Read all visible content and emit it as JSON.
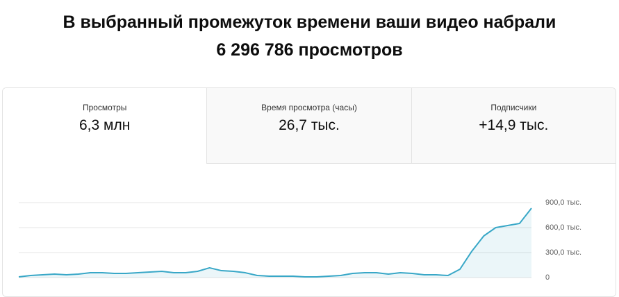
{
  "header": {
    "title_lines": [
      "В выбранный промежуток времени ваши видео набрали",
      "6 296 786 просмотров"
    ]
  },
  "tabs": [
    {
      "label": "Просмотры",
      "value": "6,3 млн"
    },
    {
      "label": "Время просмотра (часы)",
      "value": "26,7 тыс."
    },
    {
      "label": "Подписчики",
      "value": "+14,9 тыс."
    }
  ],
  "chart_data": {
    "type": "area",
    "categories": [
      null,
      null,
      null,
      null,
      null,
      null,
      null,
      null,
      null,
      null,
      null,
      null,
      null,
      null,
      null,
      null,
      null,
      null,
      null,
      null,
      null,
      null,
      null,
      null,
      null,
      null,
      null,
      null,
      null,
      null,
      null,
      null,
      null,
      null,
      null,
      null,
      null,
      null,
      null,
      null,
      null,
      null,
      null,
      null
    ],
    "values": [
      8000,
      25000,
      33000,
      42000,
      33000,
      42000,
      58000,
      58000,
      50000,
      50000,
      58000,
      67000,
      75000,
      58000,
      58000,
      75000,
      117000,
      83000,
      75000,
      58000,
      25000,
      17000,
      17000,
      17000,
      8000,
      8000,
      17000,
      25000,
      50000,
      58000,
      58000,
      42000,
      58000,
      50000,
      33000,
      33000,
      25000,
      100000,
      317000,
      500000,
      600000,
      625000,
      650000,
      833000
    ],
    "color": "#38a7c7",
    "ylim": [
      0,
      900000
    ],
    "yticks": [
      0,
      {
        "value": 300000,
        "label": "300,0 тыс."
      },
      {
        "value": 600000,
        "label": "600,0 тыс."
      },
      {
        "value": 900000,
        "label": "900,0 тыс."
      }
    ],
    "grid": true
  }
}
